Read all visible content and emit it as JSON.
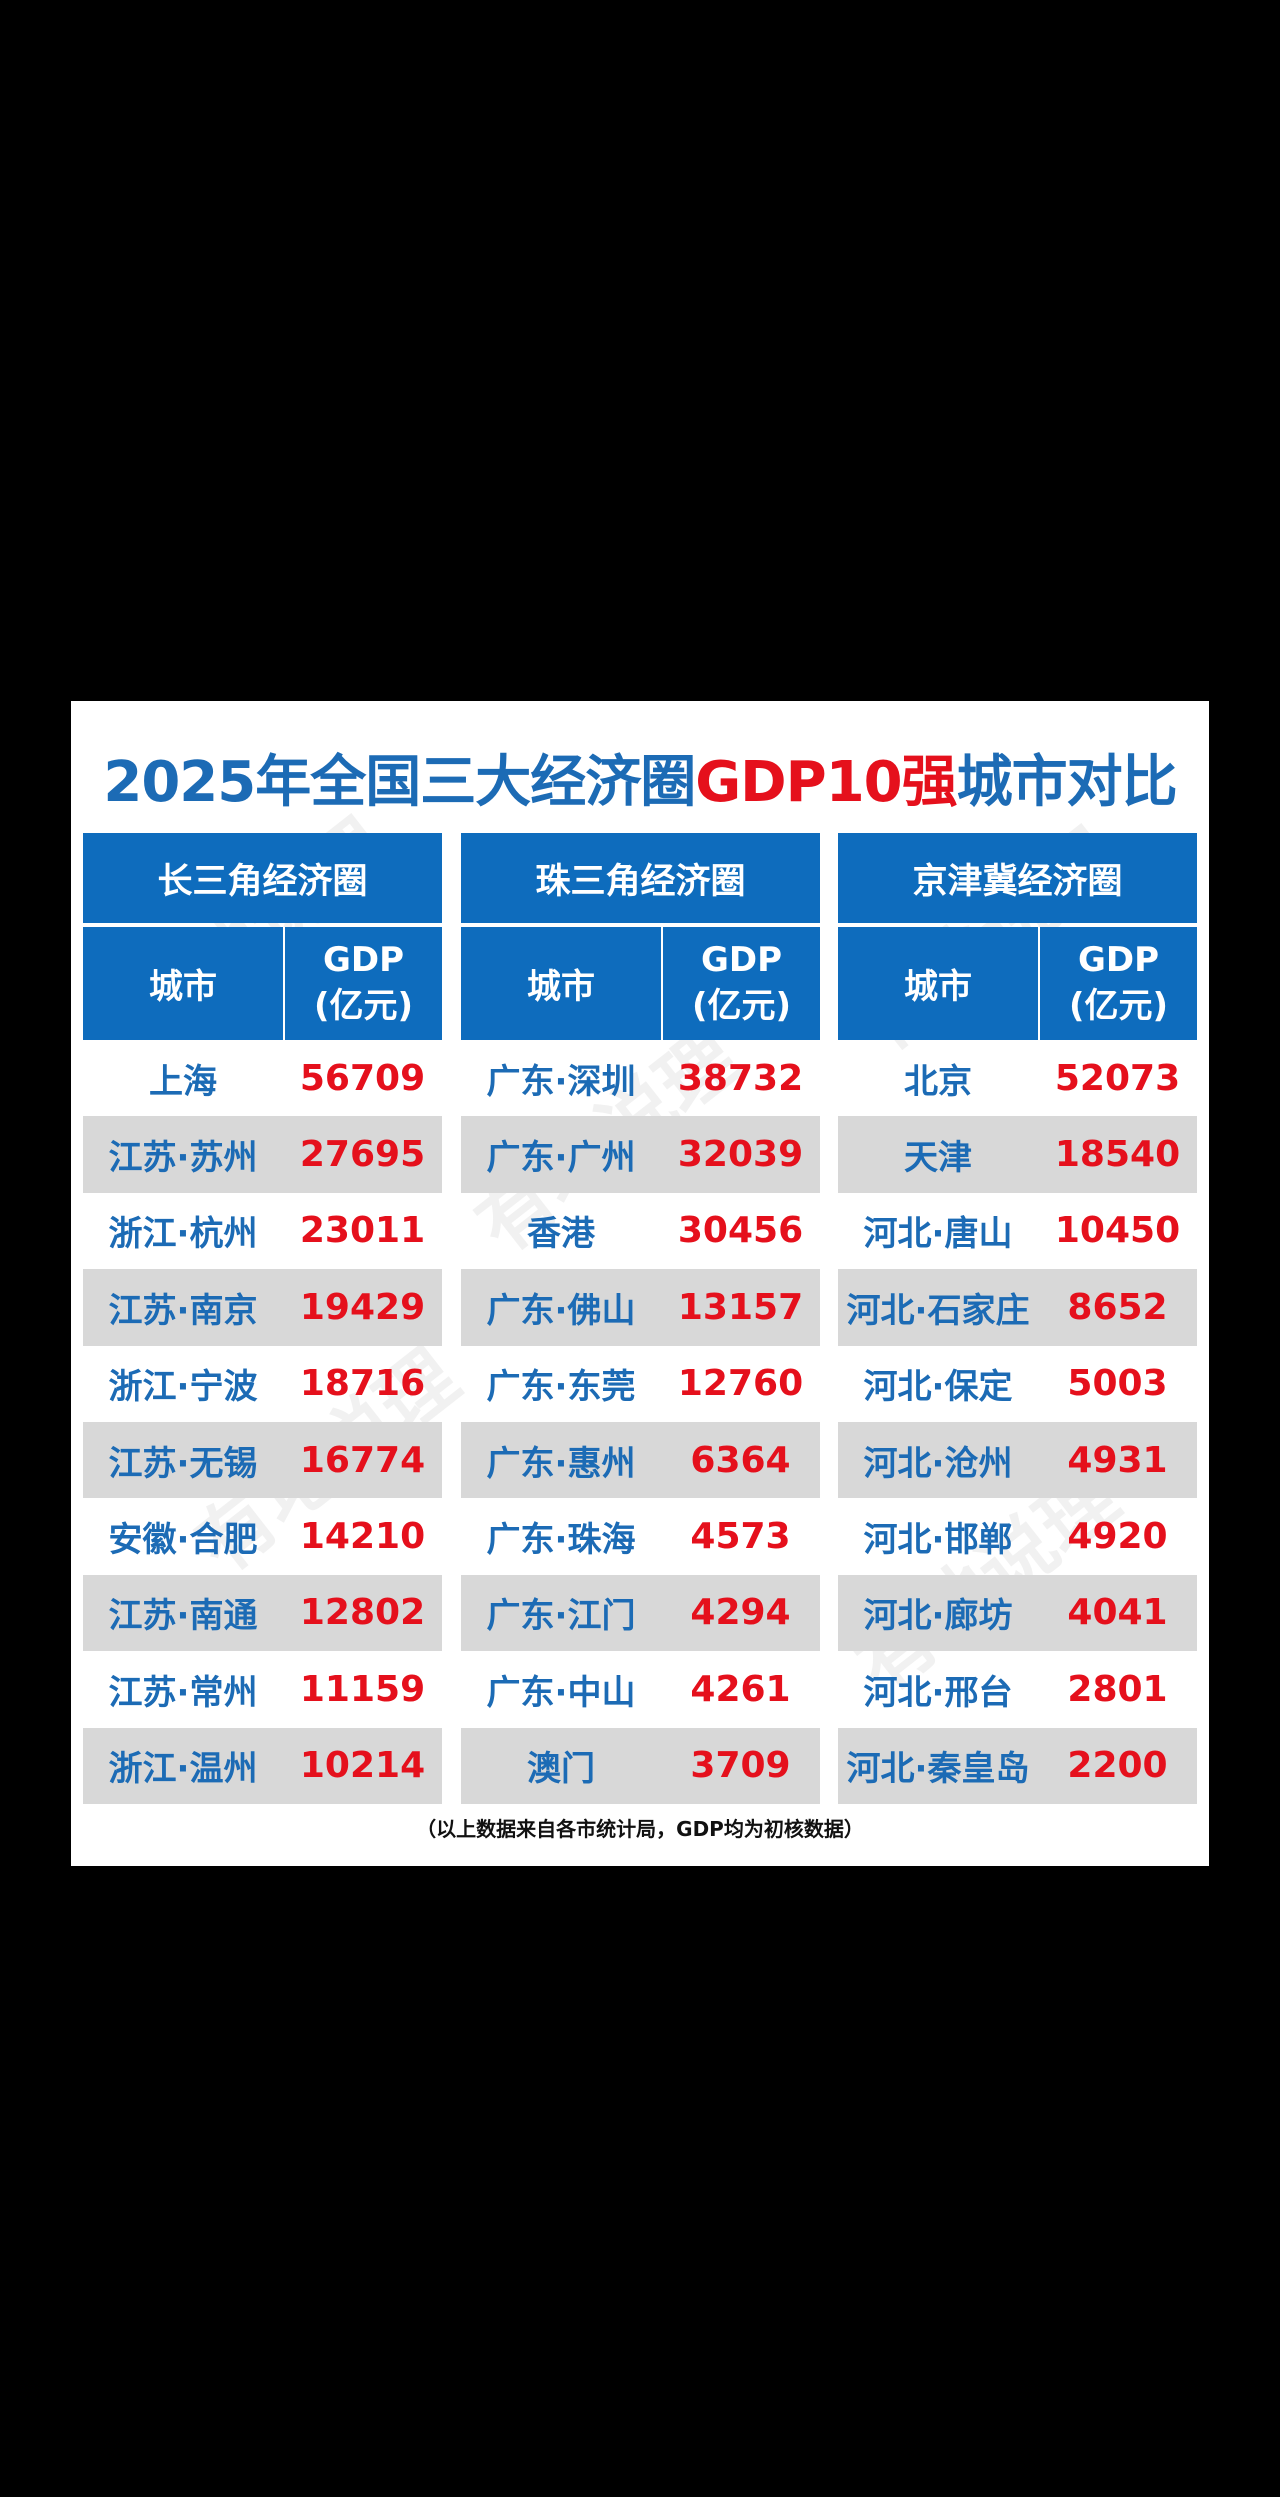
{
  "title_prefix": "2025年全国三大经济圈",
  "title_highlight": "GDP10强",
  "title_suffix": "城市对比",
  "column_city": "城市",
  "column_gdp_line1": "GDP",
  "column_gdp_line2": "(亿元)",
  "watermark": "有地说理",
  "note": "（以上数据来自各市统计局，GDP均为初核数据）",
  "regions": [
    {
      "name": "长三角经济圈",
      "rows": [
        {
          "city": "上海",
          "gdp": "56709"
        },
        {
          "city": "江苏·苏州",
          "gdp": "27695"
        },
        {
          "city": "浙江·杭州",
          "gdp": "23011"
        },
        {
          "city": "江苏·南京",
          "gdp": "19429"
        },
        {
          "city": "浙江·宁波",
          "gdp": "18716"
        },
        {
          "city": "江苏·无锡",
          "gdp": "16774"
        },
        {
          "city": "安徽·合肥",
          "gdp": "14210"
        },
        {
          "city": "江苏·南通",
          "gdp": "12802"
        },
        {
          "city": "江苏·常州",
          "gdp": "11159"
        },
        {
          "city": "浙江·温州",
          "gdp": "10214"
        }
      ]
    },
    {
      "name": "珠三角经济圈",
      "rows": [
        {
          "city": "广东·深圳",
          "gdp": "38732"
        },
        {
          "city": "广东·广州",
          "gdp": "32039"
        },
        {
          "city": "香港",
          "gdp": "30456"
        },
        {
          "city": "广东·佛山",
          "gdp": "13157"
        },
        {
          "city": "广东·东莞",
          "gdp": "12760"
        },
        {
          "city": "广东·惠州",
          "gdp": "6364"
        },
        {
          "city": "广东·珠海",
          "gdp": "4573"
        },
        {
          "city": "广东·江门",
          "gdp": "4294"
        },
        {
          "city": "广东·中山",
          "gdp": "4261"
        },
        {
          "city": "澳门",
          "gdp": "3709"
        }
      ]
    },
    {
      "name": "京津冀经济圈",
      "rows": [
        {
          "city": "北京",
          "gdp": "52073"
        },
        {
          "city": "天津",
          "gdp": "18540"
        },
        {
          "city": "河北·唐山",
          "gdp": "10450"
        },
        {
          "city": "河北·石家庄",
          "gdp": "8652"
        },
        {
          "city": "河北·保定",
          "gdp": "5003"
        },
        {
          "city": "河北·沧州",
          "gdp": "4931"
        },
        {
          "city": "河北·邯郸",
          "gdp": "4920"
        },
        {
          "city": "河北·廊坊",
          "gdp": "4041"
        },
        {
          "city": "河北·邢台",
          "gdp": "2801"
        },
        {
          "city": "河北·秦皇岛",
          "gdp": "2200"
        }
      ]
    }
  ],
  "colors": {
    "header_blue": "#0e6cbd",
    "title_blue": "#1c6bb5",
    "highlight_red": "#e5101c",
    "alt_row_gray": "#d8d8d8"
  }
}
